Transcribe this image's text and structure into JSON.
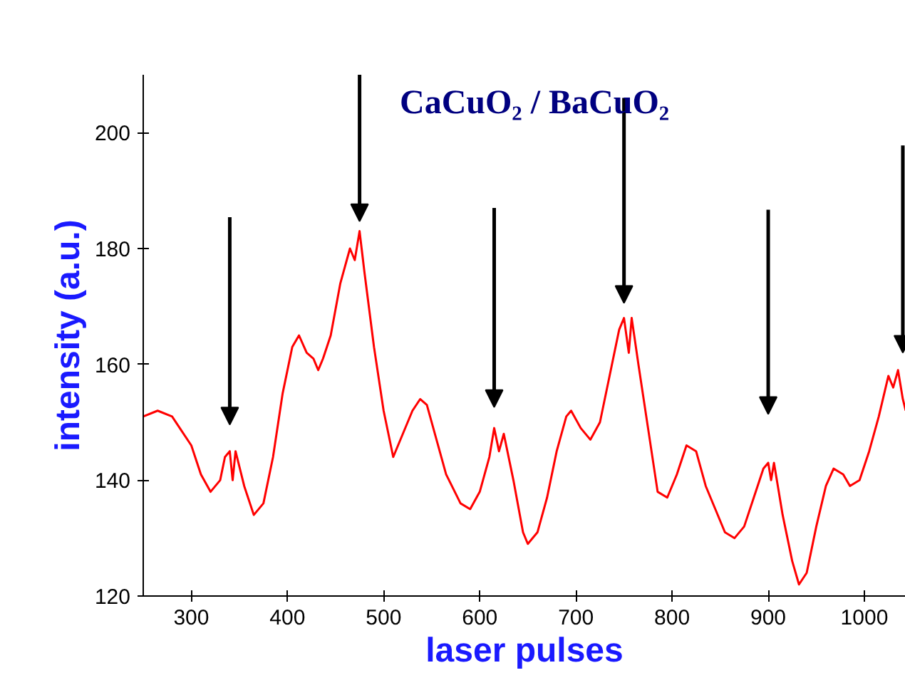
{
  "chart_data": {
    "type": "line",
    "xlabel": "laser pulses",
    "ylabel": "intensity (a.u.)",
    "annotations": [
      "CaCuO₂ / BaCuO₂"
    ],
    "x": [
      250,
      265,
      280,
      300,
      310,
      320,
      330,
      335,
      340,
      343,
      346,
      355,
      365,
      375,
      385,
      395,
      405,
      412,
      420,
      427,
      432,
      437,
      445,
      455,
      465,
      470,
      475,
      480,
      490,
      500,
      510,
      520,
      530,
      538,
      545,
      555,
      565,
      580,
      590,
      600,
      610,
      615,
      620,
      625,
      635,
      645,
      650,
      660,
      670,
      680,
      690,
      695,
      705,
      715,
      725,
      735,
      745,
      750,
      755,
      758,
      765,
      775,
      785,
      795,
      805,
      815,
      825,
      835,
      845,
      855,
      865,
      875,
      885,
      895,
      900,
      903,
      906,
      915,
      925,
      932,
      940,
      950,
      960,
      968,
      978,
      985,
      995,
      1005,
      1015,
      1025,
      1030,
      1035,
      1040,
      1043
    ],
    "series": [
      {
        "color": "#ff0000",
        "values": [
          151,
          152,
          151,
          146,
          141,
          138,
          140,
          144,
          145,
          140,
          145,
          139,
          134,
          136,
          144,
          155,
          163,
          165,
          162,
          161,
          159,
          161,
          165,
          174,
          180,
          178,
          183,
          176,
          163,
          152,
          144,
          148,
          152,
          154,
          153,
          147,
          141,
          136,
          135,
          138,
          144,
          149,
          145,
          148,
          140,
          131,
          129,
          131,
          137,
          145,
          151,
          152,
          149,
          147,
          150,
          158,
          166,
          168,
          162,
          168,
          160,
          149,
          138,
          137,
          141,
          146,
          145,
          139,
          135,
          131,
          130,
          132,
          137,
          142,
          143,
          140,
          143,
          134,
          126,
          122,
          124,
          132,
          139,
          142,
          141,
          139,
          140,
          145,
          151,
          158,
          156,
          159,
          154,
          152
        ]
      }
    ],
    "xlim": [
      250,
      1043
    ],
    "ylim": [
      120,
      210
    ],
    "xticks": [
      300,
      400,
      500,
      600,
      700,
      800,
      900,
      1000
    ],
    "yticks": [
      120,
      140,
      160,
      180,
      200
    ],
    "grid": false,
    "marker": "none",
    "line_style": "solid"
  }
}
